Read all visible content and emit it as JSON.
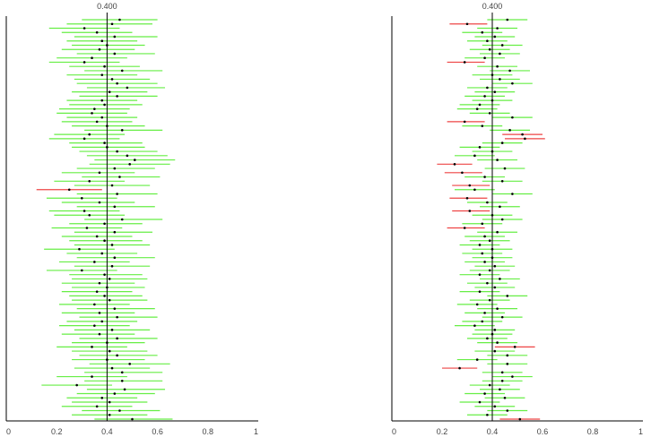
{
  "chart_data": [
    {
      "type": "interval",
      "title": "",
      "reference_line": 0.4,
      "reference_label": "0.400",
      "xlim": [
        0,
        1
      ],
      "ticks": [
        "0",
        "0.2",
        "0.4",
        "0.6",
        "0.8",
        "1"
      ],
      "colors": {
        "covers": "#66ee44",
        "misses": "#ee4444",
        "point": "#000000",
        "reference": "#000000",
        "axis": "#000000"
      },
      "intervals": [
        {
          "est": 0.45,
          "lo": 0.3,
          "hi": 0.6
        },
        {
          "est": 0.42,
          "lo": 0.24,
          "hi": 0.58
        },
        {
          "est": 0.31,
          "lo": 0.17,
          "hi": 0.45
        },
        {
          "est": 0.36,
          "lo": 0.22,
          "hi": 0.5
        },
        {
          "est": 0.43,
          "lo": 0.27,
          "hi": 0.6
        },
        {
          "est": 0.38,
          "lo": 0.24,
          "hi": 0.52
        },
        {
          "est": 0.4,
          "lo": 0.26,
          "hi": 0.55
        },
        {
          "est": 0.37,
          "lo": 0.22,
          "hi": 0.51
        },
        {
          "est": 0.43,
          "lo": 0.28,
          "hi": 0.59
        },
        {
          "est": 0.34,
          "lo": 0.2,
          "hi": 0.48
        },
        {
          "est": 0.31,
          "lo": 0.17,
          "hi": 0.45
        },
        {
          "est": 0.39,
          "lo": 0.25,
          "hi": 0.53
        },
        {
          "est": 0.46,
          "lo": 0.31,
          "hi": 0.62
        },
        {
          "est": 0.38,
          "lo": 0.24,
          "hi": 0.52
        },
        {
          "est": 0.42,
          "lo": 0.27,
          "hi": 0.57
        },
        {
          "est": 0.44,
          "lo": 0.28,
          "hi": 0.6
        },
        {
          "est": 0.48,
          "lo": 0.32,
          "hi": 0.63
        },
        {
          "est": 0.41,
          "lo": 0.26,
          "hi": 0.56
        },
        {
          "est": 0.44,
          "lo": 0.29,
          "hi": 0.6
        },
        {
          "est": 0.38,
          "lo": 0.24,
          "hi": 0.52
        },
        {
          "est": 0.39,
          "lo": 0.25,
          "hi": 0.54
        },
        {
          "est": 0.35,
          "lo": 0.21,
          "hi": 0.49
        },
        {
          "est": 0.34,
          "lo": 0.2,
          "hi": 0.48
        },
        {
          "est": 0.38,
          "lo": 0.24,
          "hi": 0.52
        },
        {
          "est": 0.36,
          "lo": 0.22,
          "hi": 0.5
        },
        {
          "est": 0.4,
          "lo": 0.26,
          "hi": 0.55
        },
        {
          "est": 0.46,
          "lo": 0.31,
          "hi": 0.62
        },
        {
          "est": 0.33,
          "lo": 0.19,
          "hi": 0.47
        },
        {
          "est": 0.31,
          "lo": 0.17,
          "hi": 0.45
        },
        {
          "est": 0.39,
          "lo": 0.25,
          "hi": 0.54
        },
        {
          "est": 0.4,
          "lo": 0.26,
          "hi": 0.55
        },
        {
          "est": 0.44,
          "lo": 0.29,
          "hi": 0.6
        },
        {
          "est": 0.48,
          "lo": 0.32,
          "hi": 0.64
        },
        {
          "est": 0.51,
          "lo": 0.35,
          "hi": 0.67
        },
        {
          "est": 0.49,
          "lo": 0.33,
          "hi": 0.65
        },
        {
          "est": 0.43,
          "lo": 0.28,
          "hi": 0.59
        },
        {
          "est": 0.37,
          "lo": 0.22,
          "hi": 0.51
        },
        {
          "est": 0.45,
          "lo": 0.3,
          "hi": 0.61
        },
        {
          "est": 0.33,
          "lo": 0.19,
          "hi": 0.47
        },
        {
          "est": 0.42,
          "lo": 0.27,
          "hi": 0.57
        },
        {
          "est": 0.25,
          "lo": 0.12,
          "hi": 0.38
        },
        {
          "est": 0.44,
          "lo": 0.28,
          "hi": 0.6
        },
        {
          "est": 0.3,
          "lo": 0.16,
          "hi": 0.44
        },
        {
          "est": 0.37,
          "lo": 0.22,
          "hi": 0.51
        },
        {
          "est": 0.43,
          "lo": 0.28,
          "hi": 0.59
        },
        {
          "est": 0.31,
          "lo": 0.17,
          "hi": 0.45
        },
        {
          "est": 0.33,
          "lo": 0.19,
          "hi": 0.47
        },
        {
          "est": 0.46,
          "lo": 0.31,
          "hi": 0.62
        },
        {
          "est": 0.39,
          "lo": 0.25,
          "hi": 0.54
        },
        {
          "est": 0.32,
          "lo": 0.18,
          "hi": 0.46
        },
        {
          "est": 0.43,
          "lo": 0.27,
          "hi": 0.58
        },
        {
          "est": 0.36,
          "lo": 0.22,
          "hi": 0.5
        },
        {
          "est": 0.39,
          "lo": 0.25,
          "hi": 0.54
        },
        {
          "est": 0.42,
          "lo": 0.27,
          "hi": 0.57
        },
        {
          "est": 0.29,
          "lo": 0.15,
          "hi": 0.43
        },
        {
          "est": 0.38,
          "lo": 0.24,
          "hi": 0.52
        },
        {
          "est": 0.43,
          "lo": 0.28,
          "hi": 0.59
        },
        {
          "est": 0.35,
          "lo": 0.21,
          "hi": 0.49
        },
        {
          "est": 0.42,
          "lo": 0.27,
          "hi": 0.57
        },
        {
          "est": 0.3,
          "lo": 0.16,
          "hi": 0.44
        },
        {
          "est": 0.39,
          "lo": 0.25,
          "hi": 0.54
        },
        {
          "est": 0.41,
          "lo": 0.26,
          "hi": 0.56
        },
        {
          "est": 0.37,
          "lo": 0.22,
          "hi": 0.51
        },
        {
          "est": 0.4,
          "lo": 0.26,
          "hi": 0.55
        },
        {
          "est": 0.36,
          "lo": 0.22,
          "hi": 0.5
        },
        {
          "est": 0.39,
          "lo": 0.25,
          "hi": 0.54
        },
        {
          "est": 0.41,
          "lo": 0.26,
          "hi": 0.56
        },
        {
          "est": 0.35,
          "lo": 0.21,
          "hi": 0.49
        },
        {
          "est": 0.43,
          "lo": 0.28,
          "hi": 0.59
        },
        {
          "est": 0.37,
          "lo": 0.22,
          "hi": 0.51
        },
        {
          "est": 0.44,
          "lo": 0.29,
          "hi": 0.6
        },
        {
          "est": 0.38,
          "lo": 0.24,
          "hi": 0.52
        },
        {
          "est": 0.35,
          "lo": 0.21,
          "hi": 0.49
        },
        {
          "est": 0.42,
          "lo": 0.27,
          "hi": 0.57
        },
        {
          "est": 0.37,
          "lo": 0.22,
          "hi": 0.51
        },
        {
          "est": 0.44,
          "lo": 0.29,
          "hi": 0.6
        },
        {
          "est": 0.4,
          "lo": 0.26,
          "hi": 0.55
        },
        {
          "est": 0.34,
          "lo": 0.2,
          "hi": 0.48
        },
        {
          "est": 0.41,
          "lo": 0.26,
          "hi": 0.56
        },
        {
          "est": 0.44,
          "lo": 0.29,
          "hi": 0.6
        },
        {
          "est": 0.4,
          "lo": 0.26,
          "hi": 0.55
        },
        {
          "est": 0.49,
          "lo": 0.33,
          "hi": 0.65
        },
        {
          "est": 0.42,
          "lo": 0.27,
          "hi": 0.57
        },
        {
          "est": 0.46,
          "lo": 0.31,
          "hi": 0.62
        },
        {
          "est": 0.34,
          "lo": 0.2,
          "hi": 0.48
        },
        {
          "est": 0.46,
          "lo": 0.31,
          "hi": 0.62
        },
        {
          "est": 0.28,
          "lo": 0.14,
          "hi": 0.42
        },
        {
          "est": 0.47,
          "lo": 0.32,
          "hi": 0.63
        },
        {
          "est": 0.43,
          "lo": 0.28,
          "hi": 0.59
        },
        {
          "est": 0.38,
          "lo": 0.24,
          "hi": 0.52
        },
        {
          "est": 0.41,
          "lo": 0.26,
          "hi": 0.56
        },
        {
          "est": 0.36,
          "lo": 0.22,
          "hi": 0.5
        },
        {
          "est": 0.45,
          "lo": 0.3,
          "hi": 0.61
        },
        {
          "est": 0.41,
          "lo": 0.26,
          "hi": 0.56
        },
        {
          "est": 0.5,
          "lo": 0.35,
          "hi": 0.66
        }
      ]
    },
    {
      "type": "interval",
      "title": "",
      "reference_line": 0.4,
      "reference_label": "0.400",
      "xlim": [
        0,
        1
      ],
      "ticks": [
        "0",
        "0.2",
        "0.4",
        "0.6",
        "0.8",
        "1"
      ],
      "colors": {
        "covers": "#66ee44",
        "misses": "#ee4444",
        "point": "#000000",
        "reference": "#000000",
        "axis": "#000000"
      },
      "intervals": [
        {
          "est": 0.46,
          "lo": 0.38,
          "hi": 0.54
        },
        {
          "est": 0.3,
          "lo": 0.23,
          "hi": 0.38
        },
        {
          "est": 0.42,
          "lo": 0.34,
          "hi": 0.5
        },
        {
          "est": 0.36,
          "lo": 0.28,
          "hi": 0.44
        },
        {
          "est": 0.41,
          "lo": 0.33,
          "hi": 0.49
        },
        {
          "est": 0.38,
          "lo": 0.3,
          "hi": 0.46
        },
        {
          "est": 0.44,
          "lo": 0.36,
          "hi": 0.52
        },
        {
          "est": 0.39,
          "lo": 0.31,
          "hi": 0.47
        },
        {
          "est": 0.43,
          "lo": 0.35,
          "hi": 0.51
        },
        {
          "est": 0.37,
          "lo": 0.29,
          "hi": 0.45
        },
        {
          "est": 0.29,
          "lo": 0.22,
          "hi": 0.37
        },
        {
          "est": 0.42,
          "lo": 0.34,
          "hi": 0.5
        },
        {
          "est": 0.47,
          "lo": 0.39,
          "hi": 0.55
        },
        {
          "est": 0.4,
          "lo": 0.32,
          "hi": 0.48
        },
        {
          "est": 0.43,
          "lo": 0.35,
          "hi": 0.51
        },
        {
          "est": 0.48,
          "lo": 0.4,
          "hi": 0.56
        },
        {
          "est": 0.38,
          "lo": 0.3,
          "hi": 0.46
        },
        {
          "est": 0.41,
          "lo": 0.33,
          "hi": 0.49
        },
        {
          "est": 0.37,
          "lo": 0.29,
          "hi": 0.45
        },
        {
          "est": 0.4,
          "lo": 0.32,
          "hi": 0.48
        },
        {
          "est": 0.35,
          "lo": 0.27,
          "hi": 0.43
        },
        {
          "est": 0.34,
          "lo": 0.26,
          "hi": 0.42
        },
        {
          "est": 0.39,
          "lo": 0.31,
          "hi": 0.47
        },
        {
          "est": 0.48,
          "lo": 0.4,
          "hi": 0.56
        },
        {
          "est": 0.29,
          "lo": 0.22,
          "hi": 0.37
        },
        {
          "est": 0.36,
          "lo": 0.28,
          "hi": 0.44
        },
        {
          "est": 0.47,
          "lo": 0.39,
          "hi": 0.55
        },
        {
          "est": 0.52,
          "lo": 0.44,
          "hi": 0.6
        },
        {
          "est": 0.53,
          "lo": 0.45,
          "hi": 0.61
        },
        {
          "est": 0.44,
          "lo": 0.36,
          "hi": 0.52
        },
        {
          "est": 0.35,
          "lo": 0.27,
          "hi": 0.43
        },
        {
          "est": 0.4,
          "lo": 0.32,
          "hi": 0.48
        },
        {
          "est": 0.33,
          "lo": 0.25,
          "hi": 0.41
        },
        {
          "est": 0.42,
          "lo": 0.34,
          "hi": 0.5
        },
        {
          "est": 0.25,
          "lo": 0.18,
          "hi": 0.32
        },
        {
          "est": 0.45,
          "lo": 0.37,
          "hi": 0.53
        },
        {
          "est": 0.28,
          "lo": 0.21,
          "hi": 0.36
        },
        {
          "est": 0.37,
          "lo": 0.29,
          "hi": 0.45
        },
        {
          "est": 0.44,
          "lo": 0.36,
          "hi": 0.52
        },
        {
          "est": 0.31,
          "lo": 0.24,
          "hi": 0.39
        },
        {
          "est": 0.33,
          "lo": 0.25,
          "hi": 0.41
        },
        {
          "est": 0.48,
          "lo": 0.4,
          "hi": 0.56
        },
        {
          "est": 0.3,
          "lo": 0.23,
          "hi": 0.38
        },
        {
          "est": 0.38,
          "lo": 0.3,
          "hi": 0.46
        },
        {
          "est": 0.43,
          "lo": 0.35,
          "hi": 0.51
        },
        {
          "est": 0.31,
          "lo": 0.24,
          "hi": 0.39
        },
        {
          "est": 0.4,
          "lo": 0.32,
          "hi": 0.48
        },
        {
          "est": 0.44,
          "lo": 0.36,
          "hi": 0.52
        },
        {
          "est": 0.36,
          "lo": 0.28,
          "hi": 0.44
        },
        {
          "est": 0.29,
          "lo": 0.22,
          "hi": 0.37
        },
        {
          "est": 0.42,
          "lo": 0.34,
          "hi": 0.5
        },
        {
          "est": 0.37,
          "lo": 0.29,
          "hi": 0.45
        },
        {
          "est": 0.39,
          "lo": 0.31,
          "hi": 0.47
        },
        {
          "est": 0.35,
          "lo": 0.27,
          "hi": 0.43
        },
        {
          "est": 0.4,
          "lo": 0.32,
          "hi": 0.48
        },
        {
          "est": 0.36,
          "lo": 0.28,
          "hi": 0.44
        },
        {
          "est": 0.4,
          "lo": 0.32,
          "hi": 0.48
        },
        {
          "est": 0.37,
          "lo": 0.29,
          "hi": 0.45
        },
        {
          "est": 0.41,
          "lo": 0.33,
          "hi": 0.49
        },
        {
          "est": 0.39,
          "lo": 0.31,
          "hi": 0.47
        },
        {
          "est": 0.35,
          "lo": 0.27,
          "hi": 0.43
        },
        {
          "est": 0.43,
          "lo": 0.35,
          "hi": 0.51
        },
        {
          "est": 0.38,
          "lo": 0.3,
          "hi": 0.46
        },
        {
          "est": 0.41,
          "lo": 0.33,
          "hi": 0.49
        },
        {
          "est": 0.35,
          "lo": 0.27,
          "hi": 0.43
        },
        {
          "est": 0.46,
          "lo": 0.38,
          "hi": 0.54
        },
        {
          "est": 0.39,
          "lo": 0.31,
          "hi": 0.47
        },
        {
          "est": 0.34,
          "lo": 0.26,
          "hi": 0.42
        },
        {
          "est": 0.42,
          "lo": 0.34,
          "hi": 0.5
        },
        {
          "est": 0.37,
          "lo": 0.29,
          "hi": 0.45
        },
        {
          "est": 0.44,
          "lo": 0.36,
          "hi": 0.52
        },
        {
          "est": 0.36,
          "lo": 0.28,
          "hi": 0.44
        },
        {
          "est": 0.33,
          "lo": 0.25,
          "hi": 0.41
        },
        {
          "est": 0.41,
          "lo": 0.33,
          "hi": 0.49
        },
        {
          "est": 0.4,
          "lo": 0.32,
          "hi": 0.48
        },
        {
          "est": 0.38,
          "lo": 0.3,
          "hi": 0.46
        },
        {
          "est": 0.42,
          "lo": 0.34,
          "hi": 0.5
        },
        {
          "est": 0.49,
          "lo": 0.41,
          "hi": 0.57
        },
        {
          "est": 0.41,
          "lo": 0.33,
          "hi": 0.49
        },
        {
          "est": 0.46,
          "lo": 0.38,
          "hi": 0.54
        },
        {
          "est": 0.34,
          "lo": 0.26,
          "hi": 0.42
        },
        {
          "est": 0.46,
          "lo": 0.38,
          "hi": 0.54
        },
        {
          "est": 0.27,
          "lo": 0.2,
          "hi": 0.34
        },
        {
          "est": 0.44,
          "lo": 0.36,
          "hi": 0.52
        },
        {
          "est": 0.48,
          "lo": 0.4,
          "hi": 0.56
        },
        {
          "est": 0.44,
          "lo": 0.36,
          "hi": 0.52
        },
        {
          "est": 0.39,
          "lo": 0.31,
          "hi": 0.47
        },
        {
          "est": 0.43,
          "lo": 0.35,
          "hi": 0.51
        },
        {
          "est": 0.37,
          "lo": 0.29,
          "hi": 0.45
        },
        {
          "est": 0.45,
          "lo": 0.37,
          "hi": 0.53
        },
        {
          "est": 0.35,
          "lo": 0.27,
          "hi": 0.43
        },
        {
          "est": 0.41,
          "lo": 0.33,
          "hi": 0.49
        },
        {
          "est": 0.46,
          "lo": 0.38,
          "hi": 0.54
        },
        {
          "est": 0.38,
          "lo": 0.3,
          "hi": 0.46
        },
        {
          "est": 0.51,
          "lo": 0.43,
          "hi": 0.59
        }
      ]
    }
  ]
}
